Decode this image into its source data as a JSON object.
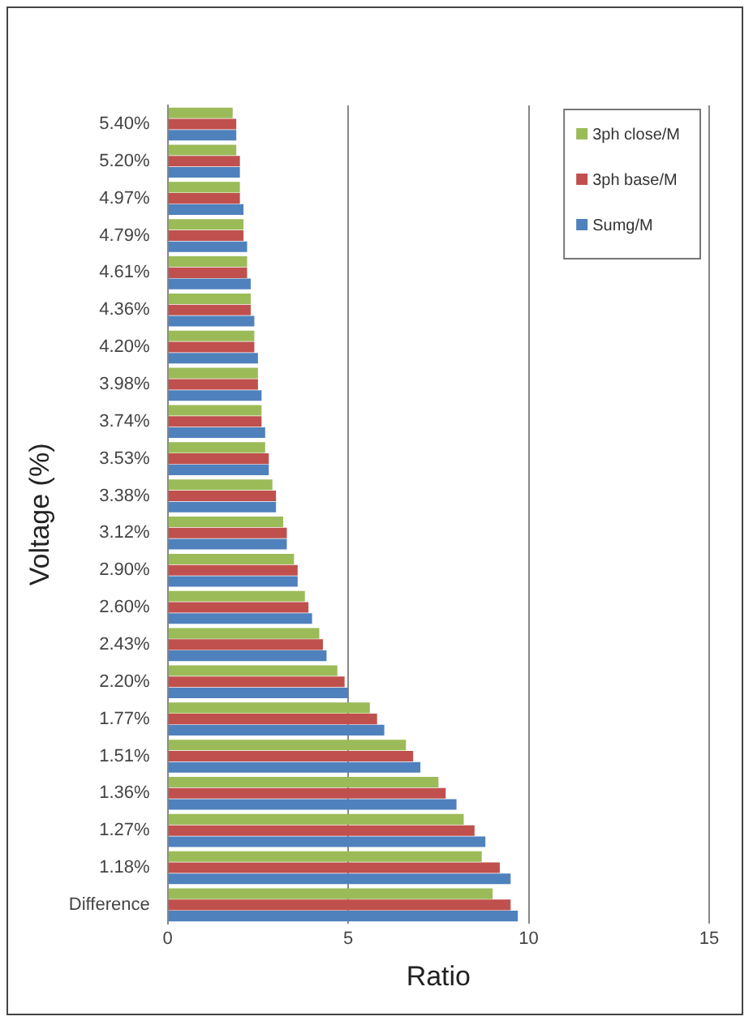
{
  "chart_data": {
    "type": "bar",
    "orientation": "horizontal",
    "xlabel": "Ratio",
    "ylabel": "Voltage (%)",
    "categories": [
      "5.40%",
      "5.20%",
      "4.97%",
      "4.79%",
      "4.61%",
      "4.36%",
      "4.20%",
      "3.98%",
      "3.74%",
      "3.53%",
      "3.38%",
      "3.12%",
      "2.90%",
      "2.60%",
      "2.43%",
      "2.20%",
      "1.77%",
      "1.51%",
      "1.36%",
      "1.27%",
      "1.18%",
      "Difference"
    ],
    "series": [
      {
        "name": "3ph close/M",
        "color": "#9bbb59",
        "values": [
          1.8,
          1.9,
          2.0,
          2.1,
          2.2,
          2.3,
          2.4,
          2.5,
          2.6,
          2.7,
          2.9,
          3.2,
          3.5,
          3.8,
          4.2,
          4.7,
          5.6,
          6.6,
          7.5,
          8.2,
          8.7,
          9.0
        ]
      },
      {
        "name": "3ph base/M",
        "color": "#c0504d",
        "values": [
          1.9,
          2.0,
          2.0,
          2.1,
          2.2,
          2.3,
          2.4,
          2.5,
          2.6,
          2.8,
          3.0,
          3.3,
          3.6,
          3.9,
          4.3,
          4.9,
          5.8,
          6.8,
          7.7,
          8.5,
          9.2,
          9.5
        ]
      },
      {
        "name": "Sumg/M",
        "color": "#4f81bd",
        "values": [
          1.9,
          2.0,
          2.1,
          2.2,
          2.3,
          2.4,
          2.5,
          2.6,
          2.7,
          2.8,
          3.0,
          3.3,
          3.6,
          4.0,
          4.4,
          5.0,
          6.0,
          7.0,
          8.0,
          8.8,
          9.5,
          9.7
        ]
      }
    ],
    "xlim": [
      0,
      15
    ],
    "xticks": [
      0,
      5,
      10,
      15
    ],
    "grid": "x",
    "legend": "top right"
  }
}
